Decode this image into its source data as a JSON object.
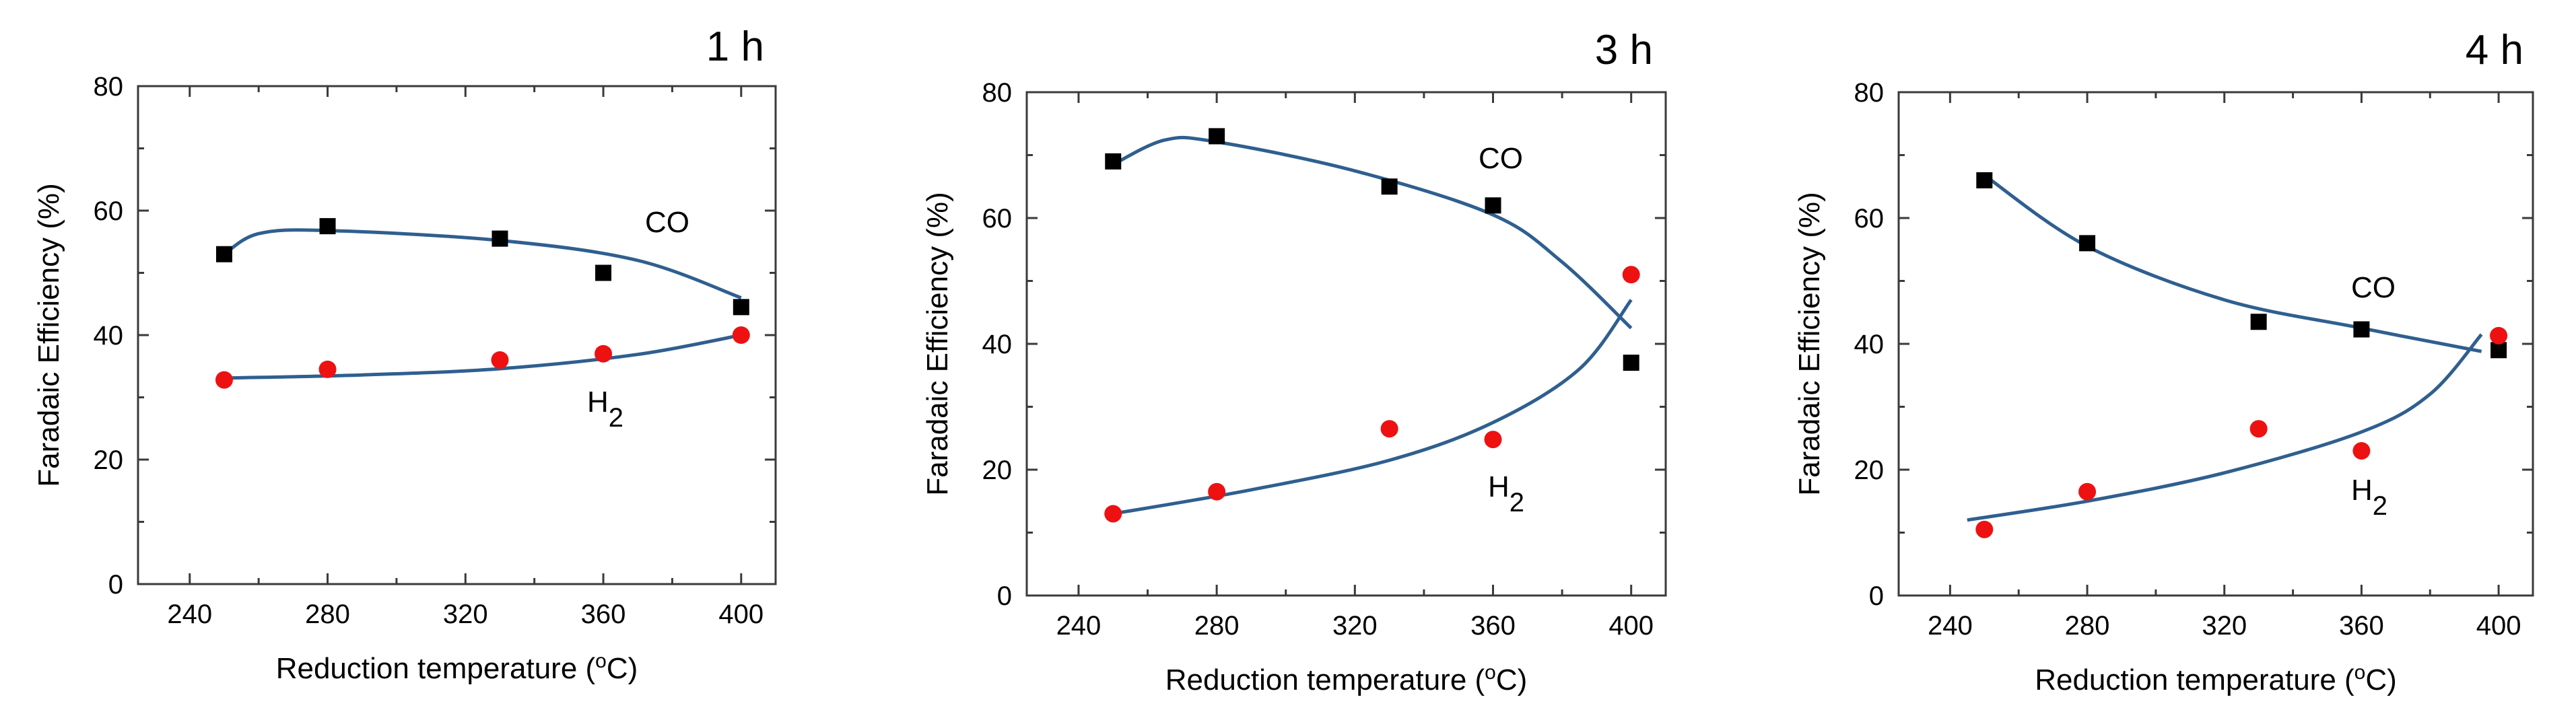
{
  "colors": {
    "co_marker": "#000000",
    "h2_marker": "#ee1111",
    "fit_line": "#2f5f8f",
    "axis": "#3a3a3a"
  },
  "chart_data": [
    {
      "type": "scatter",
      "title": "1 h",
      "xlabel": "Reduction temperature (",
      "xlabel_sup": "o",
      "xlabel_unit": "C)",
      "ylabel": "Faradaic Efficiency (%)",
      "xlim": [
        225,
        410
      ],
      "ylim": [
        0,
        80
      ],
      "xticks": [
        240,
        280,
        320,
        360,
        400
      ],
      "yticks": [
        0,
        20,
        40,
        60,
        80
      ],
      "series": [
        {
          "name": "CO",
          "label": "CO",
          "marker": "square",
          "x": [
            250,
            280,
            330,
            360,
            400
          ],
          "y": [
            53,
            57.5,
            55.5,
            50,
            44.5
          ],
          "fit": [
            [
              250,
              53
            ],
            [
              260,
              56.3
            ],
            [
              280,
              56.8
            ],
            [
              330,
              55.2
            ],
            [
              370,
              52
            ],
            [
              400,
              46
            ]
          ]
        },
        {
          "name": "H2",
          "label": "H",
          "label_sub": "2",
          "marker": "circle",
          "x": [
            250,
            280,
            330,
            360,
            400
          ],
          "y": [
            32.8,
            34.5,
            36,
            37,
            40
          ],
          "fit": [
            [
              250,
              33.1
            ],
            [
              290,
              33.6
            ],
            [
              330,
              34.6
            ],
            [
              370,
              36.9
            ],
            [
              400,
              40
            ]
          ]
        }
      ]
    },
    {
      "type": "scatter",
      "title": "3 h",
      "xlabel": "Reduction temperature (",
      "xlabel_sup": "o",
      "xlabel_unit": "C)",
      "ylabel": "Faradaic Efficiency (%)",
      "xlim": [
        225,
        410
      ],
      "ylim": [
        0,
        80
      ],
      "xticks": [
        240,
        280,
        320,
        360,
        400
      ],
      "yticks": [
        0,
        20,
        40,
        60,
        80
      ],
      "series": [
        {
          "name": "CO",
          "label": "CO",
          "marker": "square",
          "x": [
            250,
            280,
            330,
            360,
            400
          ],
          "y": [
            69,
            73,
            65,
            62,
            37
          ],
          "fit": [
            [
              250,
              68.5
            ],
            [
              265,
              72.4
            ],
            [
              280,
              72.1
            ],
            [
              320,
              67.5
            ],
            [
              360,
              60.5
            ],
            [
              380,
              53
            ],
            [
              400,
              42.5
            ]
          ]
        },
        {
          "name": "H2",
          "label": "H",
          "label_sub": "2",
          "marker": "circle",
          "x": [
            250,
            280,
            330,
            360,
            400
          ],
          "y": [
            13,
            16.5,
            26.5,
            24.8,
            51
          ],
          "fit": [
            [
              250,
              13
            ],
            [
              290,
              16.8
            ],
            [
              330,
              21.5
            ],
            [
              360,
              27.5
            ],
            [
              385,
              36
            ],
            [
              400,
              47
            ]
          ]
        }
      ]
    },
    {
      "type": "scatter",
      "title": "4 h",
      "xlabel": "Reduction temperature (",
      "xlabel_sup": "o",
      "xlabel_unit": "C)",
      "ylabel": "Faradaic Efficiency (%)",
      "xlim": [
        225,
        410
      ],
      "ylim": [
        0,
        80
      ],
      "xticks": [
        240,
        280,
        320,
        360,
        400
      ],
      "yticks": [
        0,
        20,
        40,
        60,
        80
      ],
      "series": [
        {
          "name": "CO",
          "label": "CO",
          "marker": "square",
          "x": [
            250,
            280,
            330,
            360,
            400
          ],
          "y": [
            66,
            56,
            43.5,
            42.3,
            39
          ],
          "fit": [
            [
              250,
              66.8
            ],
            [
              280,
              55.5
            ],
            [
              320,
              47
            ],
            [
              360,
              42.5
            ],
            [
              395,
              38.8
            ]
          ]
        },
        {
          "name": "H2",
          "label": "H",
          "label_sub": "2",
          "marker": "circle",
          "x": [
            250,
            280,
            330,
            360,
            400
          ],
          "y": [
            10.5,
            16.5,
            26.5,
            23,
            41.3
          ],
          "fit": [
            [
              245,
              12
            ],
            [
              280,
              15
            ],
            [
              320,
              19.5
            ],
            [
              360,
              26
            ],
            [
              380,
              32
            ],
            [
              395,
              41.5
            ]
          ]
        }
      ]
    }
  ]
}
